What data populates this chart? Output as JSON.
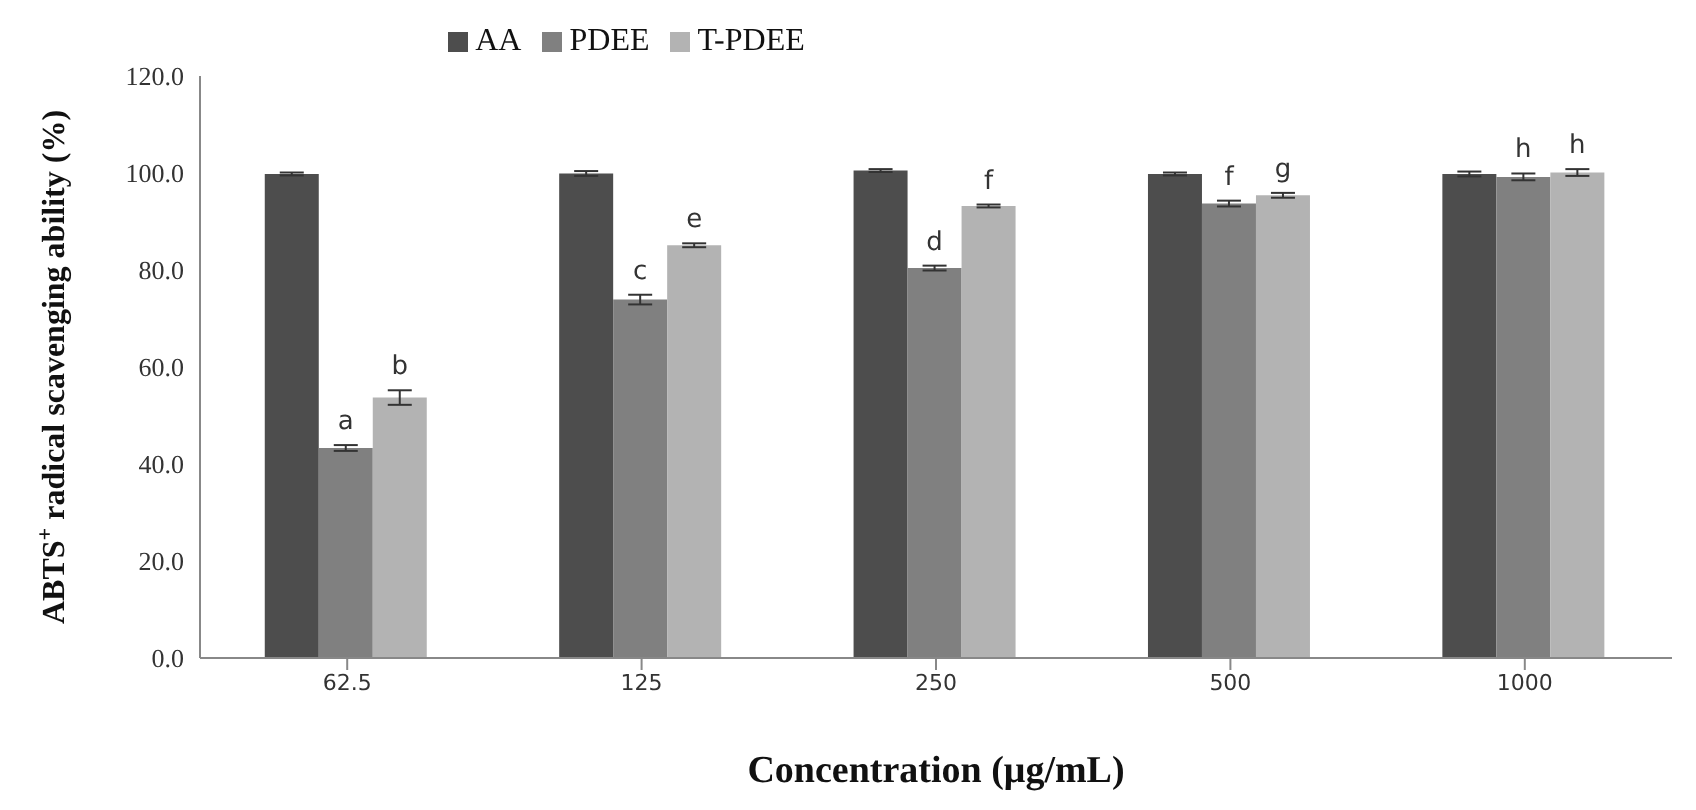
{
  "chart_data": {
    "type": "bar",
    "xlabel": "Concentration (μg/mL)",
    "ylabel": "ABTS$^{+}$ radical scavenging ability  (%)",
    "categories": [
      "62.5",
      "125",
      "250",
      "500",
      "1000"
    ],
    "series": [
      {
        "name": "AA",
        "color": "#4d4d4d",
        "values": [
          99.8,
          99.9,
          100.5,
          99.8,
          99.8
        ],
        "errors": [
          0.3,
          0.5,
          0.3,
          0.3,
          0.5
        ]
      },
      {
        "name": "PDEE",
        "color": "#808080",
        "values": [
          43.3,
          73.9,
          80.4,
          93.7,
          99.2
        ],
        "errors": [
          0.6,
          1.0,
          0.5,
          0.6,
          0.7
        ],
        "value_labels": [
          "a",
          "c",
          "d",
          "f",
          "h"
        ]
      },
      {
        "name": "T-PDEE",
        "color": "#b3b3b3",
        "values": [
          53.7,
          85.1,
          93.2,
          95.4,
          100.1
        ],
        "errors": [
          1.5,
          0.4,
          0.3,
          0.5,
          0.7
        ],
        "value_labels": [
          "b",
          "e",
          "f",
          "g",
          "h"
        ]
      }
    ],
    "ylim": [
      0,
      120
    ],
    "yticks": [
      {
        "value": 0,
        "label": "0.0"
      },
      {
        "value": 20,
        "label": "20.0"
      },
      {
        "value": 40,
        "label": "40.0"
      },
      {
        "value": 60,
        "label": "60.0"
      },
      {
        "value": 80,
        "label": "80.0"
      },
      {
        "value": 100,
        "label": "100.0"
      },
      {
        "value": 120,
        "label": "120.0"
      }
    ],
    "grid": false,
    "legend": "top"
  }
}
